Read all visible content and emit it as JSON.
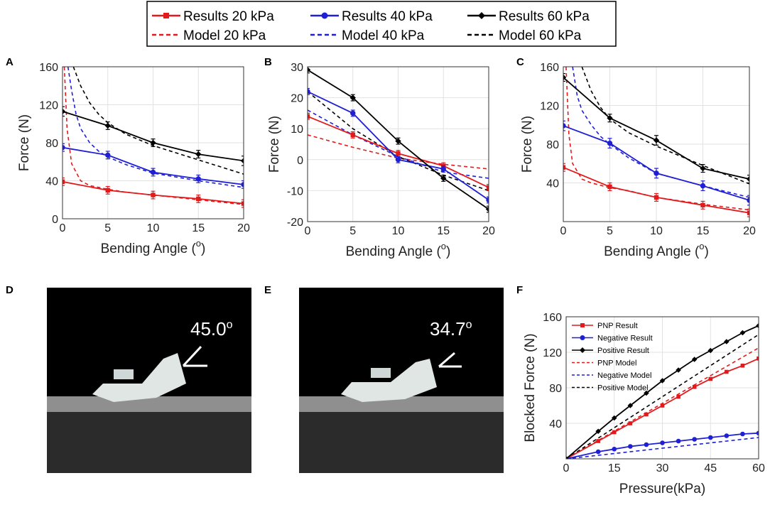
{
  "legend": {
    "entries": [
      {
        "label": "Results 20 kPa",
        "color": "#e31a1c",
        "style": "solid",
        "marker": "square"
      },
      {
        "label": "Results 40 kPa",
        "color": "#1f1fd6",
        "style": "solid",
        "marker": "circle"
      },
      {
        "label": "Results 60 kPa",
        "color": "#000000",
        "style": "solid",
        "marker": "diamond"
      },
      {
        "label": "Model 20 kPa",
        "color": "#e31a1c",
        "style": "dashed",
        "marker": "none"
      },
      {
        "label": "Model 40 kPa",
        "color": "#1f1fd6",
        "style": "dashed",
        "marker": "none"
      },
      {
        "label": "Model 60 kPa",
        "color": "#000000",
        "style": "dashed",
        "marker": "none"
      }
    ]
  },
  "photos": [
    {
      "letter": "D",
      "angle_text": "45.0",
      "angle_suffix": "o"
    },
    {
      "letter": "E",
      "angle_text": "34.7",
      "angle_suffix": "o"
    }
  ],
  "chart_data": [
    {
      "panel": "A",
      "type": "line",
      "xlabel": "Bending Angle (",
      "xlabel_sup": "o",
      "xlabel_end": ")",
      "ylabel": "Force (N)",
      "xlim": [
        0,
        20
      ],
      "ylim": [
        0,
        160
      ],
      "xticks": [
        0,
        5,
        10,
        15,
        20
      ],
      "yticks": [
        0,
        40,
        80,
        120,
        160
      ],
      "grid": true,
      "series": [
        {
          "name": "Results 20 kPa",
          "color": "#e31a1c",
          "style": "solid",
          "marker": "square",
          "x": [
            0,
            5,
            10,
            15,
            20
          ],
          "y": [
            39,
            30,
            25,
            21,
            16
          ],
          "err": [
            4,
            4,
            4,
            4,
            4
          ]
        },
        {
          "name": "Results 40 kPa",
          "color": "#1f1fd6",
          "style": "solid",
          "marker": "circle",
          "x": [
            0,
            5,
            10,
            15,
            20
          ],
          "y": [
            75,
            67,
            49,
            42,
            36
          ],
          "err": [
            4,
            4,
            4,
            4,
            4
          ]
        },
        {
          "name": "Results 60 kPa",
          "color": "#000000",
          "style": "solid",
          "marker": "diamond",
          "x": [
            0,
            5,
            10,
            15,
            20
          ],
          "y": [
            113,
            98,
            80,
            68,
            61
          ],
          "err": [
            5,
            4,
            4,
            4,
            5
          ]
        },
        {
          "name": "Model 20 kPa",
          "color": "#e31a1c",
          "style": "dashed",
          "marker": "none",
          "x": [
            0.2,
            0.5,
            1,
            2,
            3,
            5,
            7,
            10,
            15,
            20
          ],
          "y": [
            160,
            95,
            58,
            40,
            35,
            31,
            28,
            25,
            20,
            15
          ]
        },
        {
          "name": "Model 40 kPa",
          "color": "#1f1fd6",
          "style": "dashed",
          "marker": "none",
          "x": [
            0.6,
            1,
            1.5,
            2,
            3,
            4,
            5,
            7,
            10,
            15,
            20
          ],
          "y": [
            160,
            135,
            110,
            95,
            80,
            71,
            65,
            57,
            48,
            40,
            33
          ]
        },
        {
          "name": "Model 60 kPa",
          "color": "#000000",
          "style": "dashed",
          "marker": "none",
          "x": [
            1.2,
            2,
            3,
            4,
            5,
            7,
            10,
            15,
            20
          ],
          "y": [
            160,
            140,
            122,
            110,
            101,
            89,
            77,
            62,
            47
          ]
        }
      ]
    },
    {
      "panel": "B",
      "type": "line",
      "xlabel": "Bending Angle (",
      "xlabel_sup": "o",
      "xlabel_end": ")",
      "ylabel": "Force (N)",
      "xlim": [
        0,
        20
      ],
      "ylim": [
        -20,
        30
      ],
      "xticks": [
        0,
        5,
        10,
        15,
        20
      ],
      "yticks": [
        -20,
        -10,
        0,
        10,
        20,
        30
      ],
      "grid": true,
      "series": [
        {
          "name": "Results 20 kPa",
          "color": "#e31a1c",
          "style": "solid",
          "marker": "square",
          "x": [
            0,
            5,
            10,
            15,
            20
          ],
          "y": [
            14,
            8,
            2,
            -2,
            -9
          ],
          "err": [
            1,
            1,
            1,
            1,
            1
          ]
        },
        {
          "name": "Results 40 kPa",
          "color": "#1f1fd6",
          "style": "solid",
          "marker": "circle",
          "x": [
            0,
            5,
            10,
            15,
            20
          ],
          "y": [
            22,
            15,
            0,
            -3,
            -13
          ],
          "err": [
            1,
            1,
            1,
            1,
            1
          ]
        },
        {
          "name": "Results 60 kPa",
          "color": "#000000",
          "style": "solid",
          "marker": "diamond",
          "x": [
            0,
            5,
            10,
            15,
            20
          ],
          "y": [
            29,
            20,
            6,
            -6,
            -16
          ],
          "err": [
            1,
            1,
            1,
            1,
            1
          ]
        },
        {
          "name": "Model 20 kPa",
          "color": "#e31a1c",
          "style": "dashed",
          "marker": "none",
          "x": [
            0,
            5,
            10,
            15,
            20
          ],
          "y": [
            8,
            4,
            0.5,
            -1.5,
            -3
          ]
        },
        {
          "name": "Model 40 kPa",
          "color": "#1f1fd6",
          "style": "dashed",
          "marker": "none",
          "x": [
            0,
            5,
            10,
            15,
            20
          ],
          "y": [
            16,
            8,
            1,
            -4,
            -6
          ]
        },
        {
          "name": "Model 60 kPa",
          "color": "#000000",
          "style": "dashed",
          "marker": "none",
          "x": [
            0,
            5,
            10,
            15,
            20
          ],
          "y": [
            22,
            10,
            1,
            -5,
            -10
          ]
        }
      ]
    },
    {
      "panel": "C",
      "type": "line",
      "xlabel": "Bending Angle (",
      "xlabel_sup": "o",
      "xlabel_end": ")",
      "ylabel": "Force (N)",
      "xlim": [
        0,
        20
      ],
      "ylim": [
        0,
        160
      ],
      "xticks": [
        0,
        5,
        10,
        15,
        20
      ],
      "yticks": [
        40,
        80,
        120,
        160
      ],
      "grid": true,
      "series": [
        {
          "name": "Results 20 kPa",
          "color": "#e31a1c",
          "style": "solid",
          "marker": "square",
          "x": [
            0,
            5,
            10,
            15,
            20
          ],
          "y": [
            56,
            36,
            25,
            17,
            9
          ],
          "err": [
            4,
            4,
            4,
            4,
            4
          ]
        },
        {
          "name": "Results 40 kPa",
          "color": "#1f1fd6",
          "style": "solid",
          "marker": "circle",
          "x": [
            0,
            5,
            10,
            15,
            20
          ],
          "y": [
            99,
            81,
            50,
            37,
            22
          ],
          "err": [
            5,
            5,
            5,
            5,
            5
          ]
        },
        {
          "name": "Results 60 kPa",
          "color": "#000000",
          "style": "solid",
          "marker": "diamond",
          "x": [
            0,
            5,
            10,
            15,
            20
          ],
          "y": [
            149,
            107,
            84,
            55,
            44
          ],
          "err": [
            4,
            4,
            5,
            4,
            4
          ]
        },
        {
          "name": "Model 20 kPa",
          "color": "#e31a1c",
          "style": "dashed",
          "marker": "none",
          "x": [
            0.3,
            0.6,
            1,
            2,
            3,
            5,
            7,
            10,
            15,
            20
          ],
          "y": [
            160,
            90,
            60,
            44,
            40,
            35,
            32,
            25,
            18,
            12
          ]
        },
        {
          "name": "Model 40 kPa",
          "color": "#1f1fd6",
          "style": "dashed",
          "marker": "none",
          "x": [
            1,
            1.5,
            2,
            3,
            4,
            5,
            7,
            10,
            15,
            20
          ],
          "y": [
            160,
            130,
            115,
            100,
            88,
            80,
            66,
            50,
            37,
            25
          ]
        },
        {
          "name": "Model 60 kPa",
          "color": "#000000",
          "style": "dashed",
          "marker": "none",
          "x": [
            2,
            3,
            4,
            5,
            7,
            10,
            15,
            20
          ],
          "y": [
            160,
            135,
            118,
            106,
            92,
            78,
            58,
            39
          ]
        }
      ]
    },
    {
      "panel": "F",
      "type": "line",
      "xlabel": "Pressure(kPa)",
      "ylabel": "Blocked Force (N)",
      "xlim": [
        0,
        60
      ],
      "ylim": [
        0,
        160
      ],
      "xticks": [
        0,
        15,
        30,
        45,
        60
      ],
      "yticks": [
        40,
        80,
        120,
        160
      ],
      "grid": true,
      "legend": [
        "PNP Result",
        "Negative Result",
        "Positive Result",
        "PNP Model",
        "Negative Model",
        "Positive Model"
      ],
      "series": [
        {
          "name": "PNP Result",
          "color": "#e31a1c",
          "style": "solid",
          "marker": "square",
          "x": [
            0,
            10,
            15,
            20,
            25,
            30,
            35,
            40,
            45,
            50,
            55,
            60
          ],
          "y": [
            0,
            20,
            30,
            40,
            50,
            60,
            70,
            81,
            90,
            98,
            105,
            113
          ]
        },
        {
          "name": "Negative Result",
          "color": "#1f1fd6",
          "style": "solid",
          "marker": "circle",
          "x": [
            0,
            10,
            15,
            20,
            25,
            30,
            35,
            40,
            45,
            50,
            55,
            60
          ],
          "y": [
            0,
            8,
            11,
            14,
            16,
            18,
            20,
            22,
            24,
            26,
            28,
            29
          ]
        },
        {
          "name": "Positive Result",
          "color": "#000000",
          "style": "solid",
          "marker": "diamond",
          "x": [
            0,
            10,
            15,
            20,
            25,
            30,
            35,
            40,
            45,
            50,
            55,
            60
          ],
          "y": [
            0,
            31,
            46,
            60,
            74,
            88,
            100,
            112,
            122,
            132,
            142,
            150
          ]
        },
        {
          "name": "PNP Model",
          "color": "#e31a1c",
          "style": "dashed",
          "marker": "none",
          "x": [
            0,
            60
          ],
          "y": [
            0,
            125
          ]
        },
        {
          "name": "Negative Model",
          "color": "#1f1fd6",
          "style": "dashed",
          "marker": "none",
          "x": [
            0,
            60
          ],
          "y": [
            0,
            24
          ]
        },
        {
          "name": "Positive Model",
          "color": "#000000",
          "style": "dashed",
          "marker": "none",
          "x": [
            0,
            60
          ],
          "y": [
            0,
            140
          ]
        }
      ]
    }
  ]
}
